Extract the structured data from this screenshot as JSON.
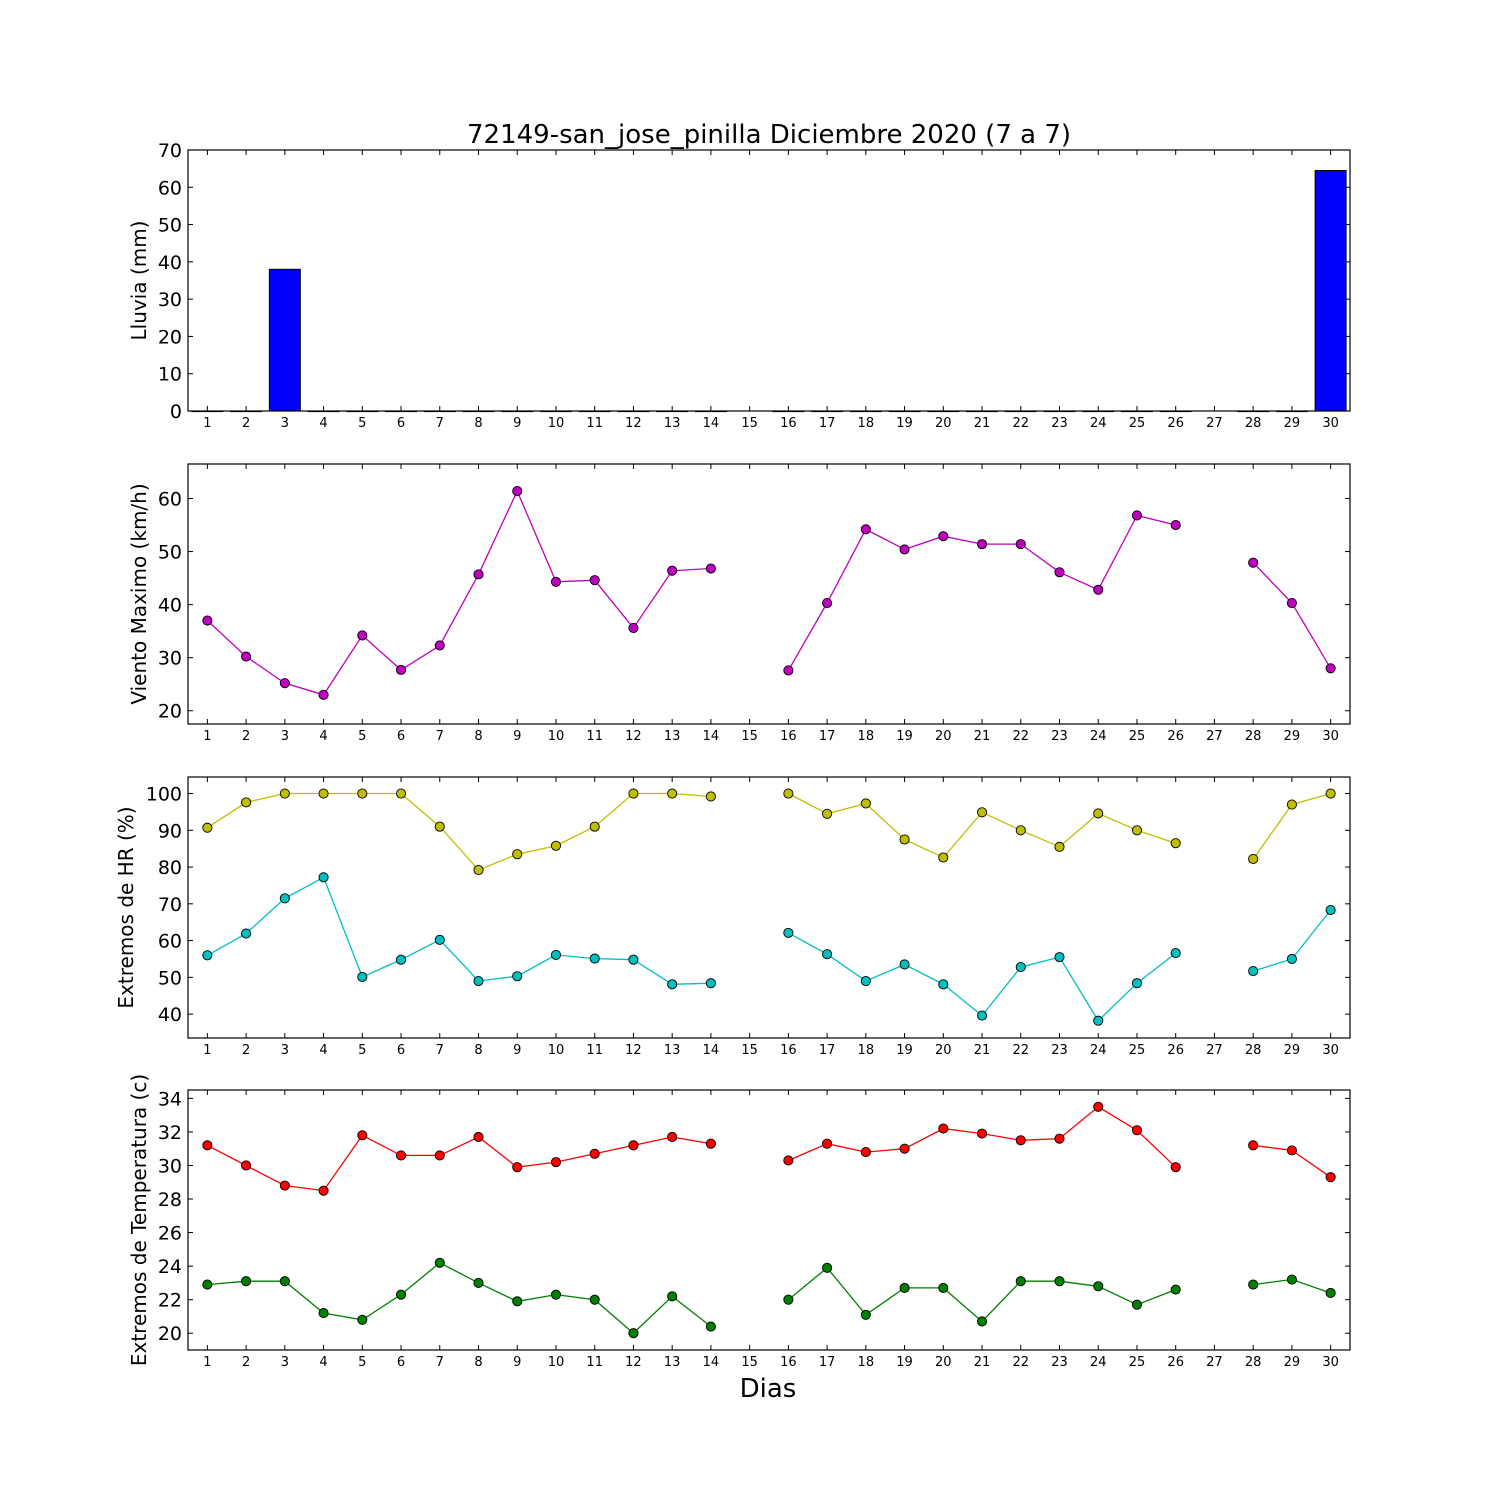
{
  "figure": {
    "title": "72149-san_jose_pinilla Diciembre 2020  (7 a 7)",
    "xlabel": "Dias"
  },
  "chart_data": [
    {
      "type": "bar",
      "ylabel": "Lluvia (mm)",
      "ylim": [
        0,
        70
      ],
      "yticks": [
        0,
        10,
        20,
        30,
        40,
        50,
        60,
        70
      ],
      "x": [
        1,
        2,
        3,
        4,
        5,
        6,
        7,
        8,
        9,
        10,
        11,
        12,
        13,
        14,
        15,
        16,
        17,
        18,
        19,
        20,
        21,
        22,
        23,
        24,
        25,
        26,
        27,
        28,
        29,
        30
      ],
      "xticks": [
        1,
        2,
        3,
        4,
        5,
        6,
        7,
        8,
        9,
        10,
        11,
        12,
        13,
        14,
        15,
        16,
        17,
        18,
        19,
        20,
        21,
        22,
        23,
        24,
        25,
        26,
        27,
        28,
        29,
        30
      ],
      "series": [
        {
          "color": "#0000ff",
          "values": [
            0,
            0,
            38,
            0,
            0,
            0,
            0,
            0,
            0,
            0,
            0,
            0,
            0,
            0,
            null,
            0,
            0,
            0,
            0,
            0,
            0,
            0,
            0,
            0,
            0,
            0,
            null,
            0,
            0,
            64.5
          ]
        }
      ],
      "grid": false
    },
    {
      "type": "line",
      "ylabel": "Viento Maximo (km/h)",
      "ylim": [
        17.5,
        66.5
      ],
      "yticks": [
        20,
        30,
        40,
        50,
        60
      ],
      "x": [
        1,
        2,
        3,
        4,
        5,
        6,
        7,
        8,
        9,
        10,
        11,
        12,
        13,
        14,
        15,
        16,
        17,
        18,
        19,
        20,
        21,
        22,
        23,
        24,
        25,
        26,
        27,
        28,
        29,
        30
      ],
      "xticks": [
        1,
        2,
        3,
        4,
        5,
        6,
        7,
        8,
        9,
        10,
        11,
        12,
        13,
        14,
        15,
        16,
        17,
        18,
        19,
        20,
        21,
        22,
        23,
        24,
        25,
        26,
        27,
        28,
        29,
        30
      ],
      "series": [
        {
          "color": "#bf00bf",
          "values": [
            37,
            30.2,
            25.2,
            23,
            34.2,
            27.7,
            32.3,
            45.7,
            61.4,
            44.3,
            44.6,
            35.6,
            46.4,
            46.8,
            null,
            27.6,
            40.3,
            54.2,
            50.4,
            52.9,
            51.4,
            51.4,
            46.1,
            42.8,
            56.8,
            55,
            null,
            47.9,
            40.3,
            28
          ]
        }
      ],
      "grid": false
    },
    {
      "type": "line",
      "ylabel": "Extremos de HR (%)",
      "ylim": [
        33.5,
        104.5
      ],
      "yticks": [
        40,
        50,
        60,
        70,
        80,
        90,
        100
      ],
      "x": [
        1,
        2,
        3,
        4,
        5,
        6,
        7,
        8,
        9,
        10,
        11,
        12,
        13,
        14,
        15,
        16,
        17,
        18,
        19,
        20,
        21,
        22,
        23,
        24,
        25,
        26,
        27,
        28,
        29,
        30
      ],
      "xticks": [
        1,
        2,
        3,
        4,
        5,
        6,
        7,
        8,
        9,
        10,
        11,
        12,
        13,
        14,
        15,
        16,
        17,
        18,
        19,
        20,
        21,
        22,
        23,
        24,
        25,
        26,
        27,
        28,
        29,
        30
      ],
      "series": [
        {
          "color": "#bfbf00",
          "values": [
            90.7,
            97.6,
            100,
            100,
            100,
            100,
            91,
            79.2,
            83.5,
            85.8,
            91,
            100,
            100,
            99.2,
            null,
            100,
            94.5,
            97.3,
            87.5,
            82.6,
            94.9,
            90,
            85.5,
            94.6,
            90,
            86.5,
            null,
            82.2,
            97,
            100
          ]
        },
        {
          "color": "#00bfbf",
          "values": [
            56,
            61.9,
            71.5,
            77.2,
            50.1,
            54.8,
            60.2,
            49,
            50.3,
            56.1,
            55.1,
            54.8,
            48.1,
            48.4,
            null,
            62.1,
            56.3,
            49,
            53.5,
            48.1,
            39.6,
            52.8,
            55.5,
            38.2,
            48.4,
            56.6,
            null,
            51.7,
            55,
            68.3
          ]
        }
      ],
      "grid": false
    },
    {
      "type": "line",
      "ylabel": "Extremos de Temperatura (c)",
      "ylim": [
        19,
        34.5
      ],
      "yticks": [
        20,
        22,
        24,
        26,
        28,
        30,
        32,
        34
      ],
      "x": [
        1,
        2,
        3,
        4,
        5,
        6,
        7,
        8,
        9,
        10,
        11,
        12,
        13,
        14,
        15,
        16,
        17,
        18,
        19,
        20,
        21,
        22,
        23,
        24,
        25,
        26,
        27,
        28,
        29,
        30
      ],
      "xticks": [
        1,
        2,
        3,
        4,
        5,
        6,
        7,
        8,
        9,
        10,
        11,
        12,
        13,
        14,
        15,
        16,
        17,
        18,
        19,
        20,
        21,
        22,
        23,
        24,
        25,
        26,
        27,
        28,
        29,
        30
      ],
      "series": [
        {
          "color": "#ff0000",
          "values": [
            31.2,
            30,
            28.8,
            28.5,
            31.8,
            30.6,
            30.6,
            31.7,
            29.9,
            30.2,
            30.7,
            31.2,
            31.7,
            31.3,
            null,
            30.3,
            31.3,
            30.8,
            31,
            32.2,
            31.9,
            31.5,
            31.6,
            33.5,
            32.1,
            29.9,
            null,
            31.2,
            30.9,
            29.3
          ]
        },
        {
          "color": "#007f00",
          "values": [
            22.9,
            23.1,
            23.1,
            21.2,
            20.8,
            22.3,
            24.2,
            23,
            21.9,
            22.3,
            22,
            20,
            22.2,
            20.4,
            null,
            22,
            23.9,
            21.1,
            22.7,
            22.7,
            20.7,
            23.1,
            23.1,
            22.8,
            21.7,
            22.6,
            null,
            22.9,
            23.2,
            22.4
          ]
        }
      ],
      "grid": false
    }
  ]
}
